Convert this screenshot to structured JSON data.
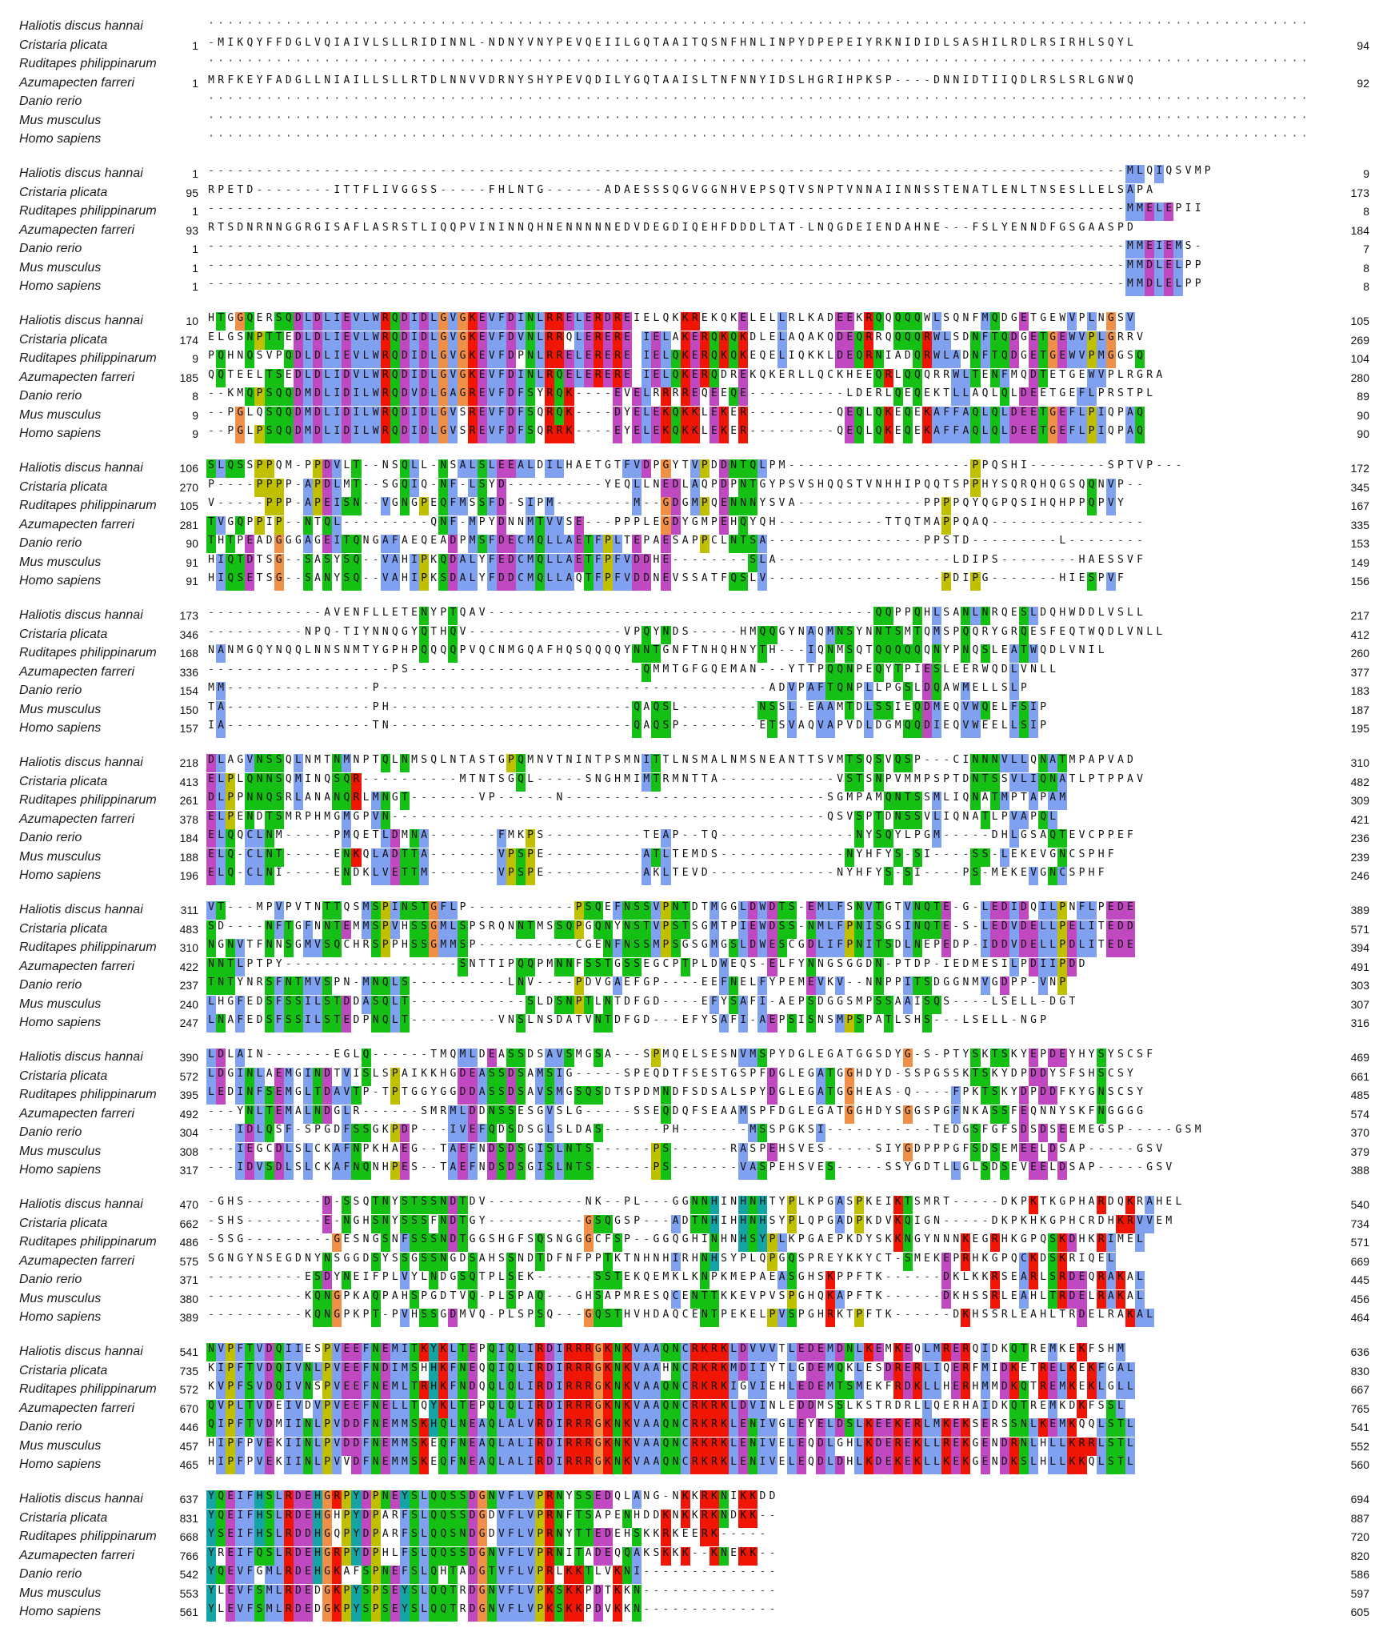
{
  "colors": {
    "hydrophobic": "#80a0f0",
    "basic": "#f01505",
    "acidic": "#c048c0",
    "polar": "#15c015",
    "cysteine": "#f08080",
    "glycine": "#f09048",
    "proline": "#c0c000",
    "aromatic": "#15a4a4",
    "background": "#ffffff"
  },
  "species": [
    "Haliotis discus hannai",
    "Cristaria plicata",
    "Ruditapes philippinarum",
    "Azumapecten farreri",
    "Danio rerio",
    "Mus musculus",
    "Homo sapiens"
  ],
  "blocks": [
    {
      "rows": [
        {
          "species": "Haliotis discus hannai",
          "start": "",
          "end": "",
          "seq": "................................................................................................................................................................................."
        },
        {
          "species": "Cristaria plicata",
          "start": "1",
          "end": "94",
          "seq": "-MIKQYFFDGLVQIAIVLSLLRIDINNL-NDNYVNYPEVQEIILGQTAAITQSNFHNLINPYDPEPEIYRKNIDIDLSASHILRDLRSIRHLSQYL"
        },
        {
          "species": "Ruditapes philippinarum",
          "start": "",
          "end": "",
          "seq": "................................................................................................................................................................................."
        },
        {
          "species": "Azumapecten farreri",
          "start": "1",
          "end": "92",
          "seq": "MRFKEYFADGLLNIAILLSLLRTDLNNVVDRNYSHYPEVQDILYGQTAAISLTNFNNYIDSLHGRIHPKSP----DNNIDTIIQDLRSLSRLGNWQ"
        },
        {
          "species": "Danio rerio",
          "start": "",
          "end": "",
          "seq": "................................................................................................................................................................................."
        },
        {
          "species": "Mus musculus",
          "start": "",
          "end": "",
          "seq": "................................................................................................................................................................................."
        },
        {
          "species": "Homo sapiens",
          "start": "",
          "end": "",
          "seq": "................................................................................................................................................................................."
        }
      ]
    },
    {
      "rows": [
        {
          "species": "Haliotis discus hannai",
          "start": "1",
          "end": "9",
          "seq": "-----------------------------------------------------------------------------------------------MLQIQSVMP"
        },
        {
          "species": "Cristaria plicata",
          "start": "95",
          "end": "173",
          "seq": "RPETD--------ITTFLIVGGSS-----FHLNTG------ADAESSSQGVGGNHVEPSQTVSNPTVNNAIINNSSTENATLENLTNSESLLELSAPA"
        },
        {
          "species": "Ruditapes philippinarum",
          "start": "1",
          "end": "8",
          "seq": "-----------------------------------------------------------------------------------------------MMELEPII"
        },
        {
          "species": "Azumapecten farreri",
          "start": "93",
          "end": "184",
          "seq": "RTSDNRNNGGRGISAFLASRSTLIQQPVININNQHNENNNNNEDVDEGDIQEHFDDDLTAT-LNQGDEIENDAHNE---FSLYENNDFGSGAASPD"
        },
        {
          "species": "Danio rerio",
          "start": "1",
          "end": "7",
          "seq": "-----------------------------------------------------------------------------------------------MMEIEMS-"
        },
        {
          "species": "Mus musculus",
          "start": "1",
          "end": "8",
          "seq": "-----------------------------------------------------------------------------------------------MMDLELPP"
        },
        {
          "species": "Homo sapiens",
          "start": "1",
          "end": "8",
          "seq": "-----------------------------------------------------------------------------------------------MMDLELPP"
        }
      ]
    },
    {
      "rows": [
        {
          "species": "Haliotis discus hannai",
          "start": "10",
          "end": "105",
          "seq": "HTGGQERSQDLDLIEVLWRQDIDLGVGKEVFDINLRRELERDREIELQKKREKQKELELLRLKADEEKRQQQQQWLSQNFMQDGETGEWVPLNGSV"
        },
        {
          "species": "Cristaria plicata",
          "start": "174",
          "end": "269",
          "seq": "ELGSNPTTEDLDLIEVLWRQDIDLGVGKEVFDVNLRRQLERERE IELAKERQKQKDLELAQAKQDEQRRQQQQRWLSDNFTQDGETGEWVPLGRRV"
        },
        {
          "species": "Ruditapes philippinarum",
          "start": "9",
          "end": "104",
          "seq": "PQHNQSVPQDLDLIEVLWRQDIDLGVGKEVFDPNLRRELERERE IELQKERQKQKEQELIQKKLDEQRNIADQRWLADNFTQDGETGEWVPMGGSQ"
        },
        {
          "species": "Azumapecten farreri",
          "start": "185",
          "end": "280",
          "seq": "QQTEELTSEDLDLIDVLWRQDIDLGVGKEVFDINLRQELERERE IELQKERQDREKQKERLLQCKHEEQRLQQQRRWLTENFMQDTETGEWVPLRGRA"
        },
        {
          "species": "Danio rerio",
          "start": "8",
          "end": "89",
          "seq": "--KMQPSQQDMDLIDILWRQDVDLGAGREVFDFSYRQK----EVELRRRREQEEQE----------LDERLQEQEKTLLAQLQLDEETGEFLPRSTPL"
        },
        {
          "species": "Mus musculus",
          "start": "9",
          "end": "90",
          "seq": "--PGLQSQQDMDLIDILWRQDIDLGVSREVFDFSQRQK----DYELEKQKKLEKER---------QEQLQKEQEKAFFAQLQLDEETGEFLPIQPAQ"
        },
        {
          "species": "Homo sapiens",
          "start": "9",
          "end": "90",
          "seq": "--PGLPSQQDMDLIDILWRQDIDLGVSREVFDFSQRRK----EYELEKQKKLEKER---------QEQLQKEQEKAFFAQLQLDEETGEFLPIQPAQ"
        }
      ]
    },
    {
      "rows": [
        {
          "species": "Haliotis discus hannai",
          "start": "106",
          "end": "172",
          "seq": "SLQSSPPQM-PPDVLT--NSQLL-NSALSLEEALDILHAETGTFVDPGYTVPDDNTQLPM-------------------PPQSHI--------SPTVP---"
        },
        {
          "species": "Cristaria plicata",
          "start": "270",
          "end": "345",
          "seq": "P----PPPP-APDLMT--SGQIQ-NF-LSYD----------YEQLLNEDLAQPDPNTGYPSVSHQQSTVNHHIPQQTSPPHYSQRQHQGSQQNVP--"
        },
        {
          "species": "Ruditapes philippinarum",
          "start": "105",
          "end": "167",
          "seq": "V-----PPP-APEISN--VGNGPEQFMSSFD-SIPM--------M--GDGMPQENNNYSVA-------------PPPPQYQGPQSIHQHPPQPVY"
        },
        {
          "species": "Azumapecten farreri",
          "start": "281",
          "end": "335",
          "seq": "TVGQPPIP--NTQL---------QNF-MPYDNNMTVVSE---PPPLEGDYGMPEHQYQH-----------TTQTMAPPQAQ----------------"
        },
        {
          "species": "Danio rerio",
          "start": "90",
          "end": "153",
          "seq": "THTPEADGGGAGEITQNGAFAEQEADPMSFDECMQLLAETFPLTEPAESAPPCLNTSA----------------PPSTD---------L--------"
        },
        {
          "species": "Mus musculus",
          "start": "91",
          "end": "149",
          "seq": "HIQTDTSG--SASYSQ--VAHIPKQDALYFEDCMQLLAETFPFVDDHE--------SLA------------------LDIPS--------HAESSVF"
        },
        {
          "species": "Homo sapiens",
          "start": "91",
          "end": "156",
          "seq": "HIQSETSG--SANYSQ--VAHIPKSDALYFDDCMQLLAQTFPFVDDNEVSSATFQSLV------------------PDIPG-------HIESPVF"
        }
      ]
    },
    {
      "rows": [
        {
          "species": "Haliotis discus hannai",
          "start": "173",
          "end": "217",
          "seq": "------------AVENFLLETENYPTQAV----------------------------------------QQPPQHLSANLNRQESLDQHWDDLVSLL"
        },
        {
          "species": "Cristaria plicata",
          "start": "346",
          "end": "412",
          "seq": "----------NPQ-TIYNNQGYQTHQV----------------VPQYNDS-----HMQQGYNAQMNSYNNTSMTQMSPQQRYGRQESFEQTWQDLVNLL"
        },
        {
          "species": "Ruditapes philippinarum",
          "start": "168",
          "end": "260",
          "seq": "NANMGQYNQQLNNSNMTYGPHPQQQQPVQCNMGQAFHQSQQQQYNNTGNFTNHQHNYTH---IQNMSQTQQQQQQNYPNQSLEATWQDLVNIL"
        },
        {
          "species": "Azumapecten farreri",
          "start": "336",
          "end": "377",
          "seq": "-------------------PS------------------------QMMTGFGQEMAN---YTTPQQNPEQYTPIESLEERWQDLVNLL"
        },
        {
          "species": "Danio rerio",
          "start": "154",
          "end": "183",
          "seq": "MM---------------P----------------------------------------ADVPAFTQNPLLPGSLDQAWMELLSLP"
        },
        {
          "species": "Mus musculus",
          "start": "150",
          "end": "187",
          "seq": "TA---------------PH-------------------------QAQSL--------NSSL-EAAMTDLSSIEQDMEQVWQELFSIP"
        },
        {
          "species": "Homo sapiens",
          "start": "157",
          "end": "195",
          "seq": "IA---------------TN-------------------------QAQSP--------ETSVAQVAPVDLDGMQQDIEQVWEELLSIP"
        }
      ]
    },
    {
      "rows": [
        {
          "species": "Haliotis discus hannai",
          "start": "218",
          "end": "310",
          "seq": "DLAGVNSSQLNMTNMNPTQLNMSQLNTASTGPQMNVTNINTPSMNITTLNSMALNMSNEANTTSVMTSQSVQSP---CINNNVLLQNATMPAPVAD"
        },
        {
          "species": "Cristaria plicata",
          "start": "413",
          "end": "482",
          "seq": "ELPLQNNSQMINQSQR----------MTNTSGQL-----SNGHMIMTRMNTTA------------VSTSNPVMMPSPTDNTSSVLIQNATLPTPPAV"
        },
        {
          "species": "Ruditapes philippinarum",
          "start": "261",
          "end": "309",
          "seq": "DLPPNNQSRLANANQRLMNGT-------VP------N---------------------------SGMPAMQNTSSMLIQNATMPTAPAM"
        },
        {
          "species": "Azumapecten farreri",
          "start": "378",
          "end": "421",
          "seq": "ELPENDTSMRPHMGMGPVN---------------------------------------------QSVSPTDNSSVLIQNATLPVAPQL"
        },
        {
          "species": "Danio rerio",
          "start": "184",
          "end": "236",
          "seq": "ELQQCLNM-----PMQETLDMNA-------FMKPS----------TEAP--TQ--------------NYSQYLPGM-----DHLGSAQTEVCPPEF"
        },
        {
          "species": "Mus musculus",
          "start": "188",
          "end": "239",
          "seq": "ELQ-CLNT-----ENKQLADTTA-------VPSPE----------ATLTEMDS-------------NYHFYS-SI----SS-LEKEVGNCSPHF"
        },
        {
          "species": "Homo sapiens",
          "start": "196",
          "end": "246",
          "seq": "ELQ-CLNI-----ENDKLVETTM-------VPSPE----------AKLTEVD-------------NYHFYS-SI----PS-MEKEVGNCSPHF"
        }
      ]
    },
    {
      "rows": [
        {
          "species": "Haliotis discus hannai",
          "start": "311",
          "end": "389",
          "seq": "VT---MPVPVTNTTQSMSPINSTGFLP-----------PSQEFNSSVPNTDTMGGLDWDTS-EMLFSNVTGTVNQTE-G-LEDIDQILPNFLPEDE"
        },
        {
          "species": "Cristaria plicata",
          "start": "483",
          "end": "571",
          "seq": "SD----NFTGFNNTEMMSPVHSSGMLSPSRQNNTMSSQPGQNYNSTVPSTSGMTPIEWDSS-NMLFPNISGSINQTE-S-LEDVDELLPELITEDD"
        },
        {
          "species": "Ruditapes philippinarum",
          "start": "310",
          "end": "394",
          "seq": "NGNVTFNNSGMVSQCHRSPPHSSGMMSP----------CGENFNSSMPSGSGMGSLDWESCGDLIFPNITSDLNEPEDP-IDDVDELLPDLITEDE"
        },
        {
          "species": "Azumapecten farreri",
          "start": "422",
          "end": "491",
          "seq": "NNTLPTPY------------------SNTTIPQQPMNNFSSTGSSEGCPTPLDWEQS-ELFYNNGSGGDN-PTDP-IEDMESILPDIIPDD"
        },
        {
          "species": "Danio rerio",
          "start": "237",
          "end": "303",
          "seq": "TNTYNRSFNTMVSPN-MNQLS----------LNV----PDVGAEFGP----EEFNELFYPEMEVKV--NNPPITSDGGNMVGDPP-VNP"
        },
        {
          "species": "Mus musculus",
          "start": "240",
          "end": "307",
          "seq": "LHGFEDSFSSILSTDDASQLT------------SLDSNPTLNTDFGD----EFYSAFI-AEPSDGGSMPSSAAISQS----LSELL-DGT"
        },
        {
          "species": "Homo sapiens",
          "start": "247",
          "end": "316",
          "seq": "LNAFEDSFSSILSTEDPNQLT---------VNSLNSDATVNTDFGD---EFYSAFI-AEPSISNSMPSPATLSHS---LSELL-NGP"
        }
      ]
    },
    {
      "rows": [
        {
          "species": "Haliotis discus hannai",
          "start": "390",
          "end": "469",
          "seq": "LDLAIN-------EGLQ------TMQMLDEASSDSAVSMGSA---SPMQELSESNVMSPYDGLEGATGGSDYG-S-PTYSKTSKYEPDEYHYSYSCSF"
        },
        {
          "species": "Cristaria plicata",
          "start": "572",
          "end": "661",
          "seq": "LDGINLAEMGINDTVISLSPAIKKHGDEASSDSAMSIG-----SPEQDTFSESTGSPFDGLEGATGGHDYD-SSPGSSKTSKYDPDDYSFSHSCSY"
        },
        {
          "species": "Ruditapes philippinarum",
          "start": "395",
          "end": "485",
          "seq": "LEDINFSEMGLTDAVTP-TPTGGYGGDDASSDSAVSMGSQSDTSPDMNDFSDSALSPYDGLEGATGGHEAS-Q----FPKTSKYDPDDFKYGNSCSY"
        },
        {
          "species": "Azumapecten farreri",
          "start": "492",
          "end": "574",
          "seq": "---YNLTEMALNDGLR------SMRMLDDNSSESGVSLG-----SSEQDQFSEAAMSPFDGLEGATGGHDYSGGSPGFNKASSFEQNNYSKFNGGGG"
        },
        {
          "species": "Danio rerio",
          "start": "304",
          "end": "370",
          "seq": "---IDLQSF-SPGDFSSGKPDP---IVEFQDSDSGLSLDAS------PH-------MSSPGKSI-----------TEDGSFGFSDSDSEEMEGSP-----GSM"
        },
        {
          "species": "Mus musculus",
          "start": "308",
          "end": "379",
          "seq": "---IEGCDLSLCKAFNPKHAEG--TAEFNDSDSGISLNTS------PS------RASPEHSVES-----SIYGDPPPGFSDSEMEELDSAP-----GSV"
        },
        {
          "species": "Homo sapiens",
          "start": "317",
          "end": "388",
          "seq": "---IDVSDLSLCKAFNQNHPES--TAEFNDSDSGISLNTS------PS-------VASPEHSVES-----SSYGDTLLGLSDSEVEELDSAP-----GSV"
        }
      ]
    },
    {
      "rows": [
        {
          "species": "Haliotis discus hannai",
          "start": "470",
          "end": "540",
          "seq": "-GHS--------D-SSQTNYSTSSNDTDV----------NK--PL---GGNNHINHNHTYPLKPGASPKEIKTSMRT-----DKPKTKGPHARDQKRAHEL"
        },
        {
          "species": "Cristaria plicata",
          "start": "662",
          "end": "734",
          "seq": "-SHS--------E-NGHSNYSSSFNDTGY----------GSQGSP---ADTNHIHHNHSYPLQPGADPKDVKQIGN-----DKPKHKGPHCRDHKRVVEM"
        },
        {
          "species": "Ruditapes philippinarum",
          "start": "486",
          "end": "571",
          "seq": "-SSG---------GESNGSNFSSSNDTGGSHGFSQSNGGGCFSP--GGQGHINHNHSYPLKPGAEPKDYSKKNGYNNNKEGRHKGPQSKDHKRIMEL"
        },
        {
          "species": "Azumapecten farreri",
          "start": "575",
          "end": "669",
          "seq": "SGNGYNSEGDNYNSGGDSYSSGSSNGDSAHSSNDTDFNFPPTKTNHNHIRHNHSYPLQPGQSPREYKKYCT-SMEKEPRHKGPQCKDSKRIQEL"
        },
        {
          "species": "Danio rerio",
          "start": "371",
          "end": "445",
          "seq": "----------ESDYNEIFPLVYLNDGSQTPLSEK------SSTEKQEMKLKNPKMEPAEASGHSKPPFTK------DKLKKRSEARLSRDEQRAKAL"
        },
        {
          "species": "Mus musculus",
          "start": "380",
          "end": "456",
          "seq": "----------KQNGPKAQPAHSPGDTVQ-PLSPAQ---GHSAPMRESQCENTTKKEVPVSPGHQKAPFTK------DKHSSRLEAHLTRDELRAKAL"
        },
        {
          "species": "Homo sapiens",
          "start": "389",
          "end": "464",
          "seq": "----------KQNGPKPT-PVHSSGDMVQ-PLSPSQ---GQSTHVHDAQCENTPEKELPVSPGHRKTPFTK------DKHSSRLEAHLTRDELRAKAL"
        }
      ]
    },
    {
      "rows": [
        {
          "species": "Haliotis discus hannai",
          "start": "541",
          "end": "636",
          "seq": "NVPFTVDQIIESPVEEFNEMITKYKLTEPQIQLIRDIRRRGKNKVAAQNCRKRKLDVVVTLEDEMDNLKEMKEQLMRERQIDKQTREMKEKFSHM"
        },
        {
          "species": "Cristaria plicata",
          "start": "735",
          "end": "830",
          "seq": "KIPFTVDQIVNLPVEEFNDIMSHHKFNEQQIQLIRDIRRRGKNKVAAHNCRKRKMDIIYTLGDEMQKLESDRERLIQERFMIDKETRELKEKFGAL"
        },
        {
          "species": "Ruditapes philippinarum",
          "start": "572",
          "end": "667",
          "seq": "KVPFSVDQIVNSPVEEFNEMLTRHKFNDQQLQLIRDIRRRGKNKVAAQNCRKRKIGVIEHLEDEMTSMEKFRDKLLHERHMMDKQTREMKEKLGLL"
        },
        {
          "species": "Azumapecten farreri",
          "start": "670",
          "end": "765",
          "seq": "QVPLTVDEIVDVPVEEFNELLTQYKLTEPQLQLIRDIRRRGKNKVAAQNCRKRKLDVINLEDDMSSLKSTRDRLLQERHAIDKQTREMKDKFSSL"
        },
        {
          "species": "Danio rerio",
          "start": "446",
          "end": "541",
          "seq": "QIPFTVDMIINLPVDDFNEMMSKHQLNEAQLALVRDIRRRGKNKVAAQNCRKRKLENIVGLEYELDSLKEEKERLMKEKSERSSNLKEMKQQLSTL"
        },
        {
          "species": "Mus musculus",
          "start": "457",
          "end": "552",
          "seq": "HIPFPVEKIINLPVDDFNEMMSKEQFNEAQLALIRDIRRRGKNKVAAQNCRKRKLENIVELEQDLGHLKDEREKLLREKGENDRNLHLLKRRLSTL"
        },
        {
          "species": "Homo sapiens",
          "start": "465",
          "end": "560",
          "seq": "HIPFPVEKIINLPVVDFNEMMSKEQFNEAQLALIRDIRRRGKNKVAAQNCRKRKLENIVELEQDLDHLKDEKEKLLKEKGENDKSLHLLKKQLSTL"
        }
      ]
    },
    {
      "rows": [
        {
          "species": "Haliotis discus hannai",
          "start": "637",
          "end": "694",
          "seq": "YQEIFHSLRDEHGRPYDPNEYSLQQSSDGNVFLVPRNYSSEDQLANG-NKKRKNIKKDD"
        },
        {
          "species": "Cristaria plicata",
          "start": "831",
          "end": "887",
          "seq": "YQEIFHSLRDEHGHPYDPARFSLQQSSDGDVFLVPRNFTSAPENHDDKNKKRKNDKK--"
        },
        {
          "species": "Ruditapes philippinarum",
          "start": "668",
          "end": "720",
          "seq": "YSEIFHSLRDDHGQPYDPARFSLQQSNDGDVFLVPRNYTTEDEHSKKRKEERK-----"
        },
        {
          "species": "Azumapecten farreri",
          "start": "766",
          "end": "820",
          "seq": "YREIFQSLRDEHGRPYDPHLFSLQQSSDGNVFLVPRNITADEQQAKSKKK--KNEKK--"
        },
        {
          "species": "Danio rerio",
          "start": "542",
          "end": "586",
          "seq": "YQEVFGMLRDEHGKAFSPNEFSLQHTADGTVFLVPRLKKTLVKNI--------------"
        },
        {
          "species": "Mus musculus",
          "start": "553",
          "end": "597",
          "seq": "YLEVFSMLRDEDGKPYSPSEYSLQQTRDGNVFLVPKSKKPDTKKN--------------"
        },
        {
          "species": "Homo sapiens",
          "start": "561",
          "end": "605",
          "seq": "YLEVFSMLRDEDGKPYSPSEYSLQQTRDGNVFLVPKSKKPDVKKN--------------"
        }
      ]
    }
  ]
}
